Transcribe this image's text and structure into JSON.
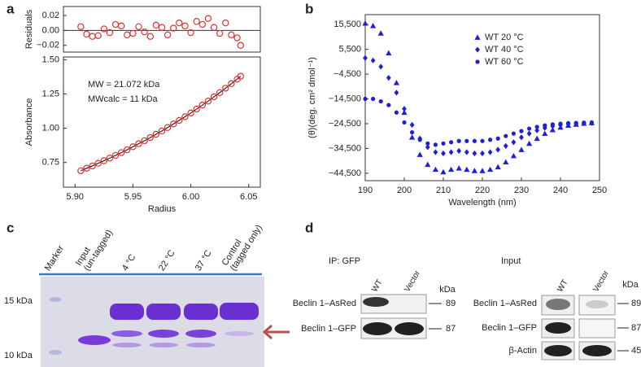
{
  "panel_labels": [
    "a",
    "b",
    "c",
    "d"
  ],
  "chart_data": [
    {
      "type": "scatter",
      "ylabel": "Residuals",
      "marker": "circle-open",
      "color": "#e03030",
      "zero_line": true,
      "x": [
        5.905,
        5.91,
        5.915,
        5.92,
        5.925,
        5.93,
        5.935,
        5.94,
        5.945,
        5.95,
        5.955,
        5.96,
        5.965,
        5.97,
        5.975,
        5.98,
        5.985,
        5.99,
        5.995,
        6.0,
        6.005,
        6.01,
        6.015,
        6.02,
        6.025,
        6.03,
        6.035,
        6.04,
        6.043
      ],
      "values": [
        0.005,
        -0.005,
        -0.008,
        -0.007,
        0.002,
        -0.003,
        0.008,
        0.006,
        -0.006,
        -0.004,
        0.005,
        -0.002,
        -0.008,
        0.007,
        0.004,
        -0.006,
        0.003,
        0.01,
        0.006,
        -0.003,
        0.012,
        0.008,
        0.016,
        0.004,
        -0.004,
        0.01,
        -0.006,
        -0.01,
        -0.02
      ],
      "xlim": [
        5.89,
        6.06
      ],
      "ylim": [
        -0.029,
        0.032
      ],
      "yticks": [
        {
          "value": 0.02,
          "label": "0.02"
        },
        {
          "value": 0,
          "label": "0.00"
        },
        {
          "value": -0.02,
          "label": "−0.02"
        }
      ]
    },
    {
      "type": "scatter",
      "ylabel": "Absorbance",
      "xlabel": "Radius",
      "marker": "circle-open",
      "color": "#e03030",
      "fit_line": true,
      "fit_color": "#000000",
      "annotations": [
        "MW = 21.072 kDa",
        "MWcalc = 11 kDa"
      ],
      "x": [
        5.905,
        5.91,
        5.915,
        5.92,
        5.925,
        5.93,
        5.935,
        5.94,
        5.945,
        5.95,
        5.955,
        5.96,
        5.965,
        5.97,
        5.975,
        5.98,
        5.985,
        5.99,
        5.995,
        6.0,
        6.005,
        6.01,
        6.015,
        6.02,
        6.025,
        6.03,
        6.035,
        6.04,
        6.043
      ],
      "values": [
        0.69,
        0.708,
        0.725,
        0.744,
        0.763,
        0.782,
        0.802,
        0.822,
        0.843,
        0.865,
        0.887,
        0.909,
        0.932,
        0.956,
        0.98,
        1.005,
        1.031,
        1.057,
        1.084,
        1.111,
        1.14,
        1.169,
        1.198,
        1.229,
        1.26,
        1.292,
        1.325,
        1.358,
        1.379
      ],
      "xlim": [
        5.89,
        6.06
      ],
      "xticks": [
        {
          "value": 5.9,
          "label": "5.90"
        },
        {
          "value": 5.95,
          "label": "5.95"
        },
        {
          "value": 6.0,
          "label": "6.00"
        },
        {
          "value": 6.05,
          "label": "6.05"
        }
      ],
      "ylim": [
        0.57,
        1.52
      ],
      "yticks": [
        {
          "value": 0.75,
          "label": "0.75"
        },
        {
          "value": 1.0,
          "label": "1.00"
        },
        {
          "value": 1.25,
          "label": "1.25"
        },
        {
          "value": 1.5,
          "label": "1.50"
        }
      ]
    },
    {
      "type": "scatter",
      "ylabel": "(θ)(deg. cm² dmol⁻¹)",
      "xlabel": "Wavelength (nm)",
      "legend": "upper right",
      "x": [
        190,
        192,
        194,
        196,
        198,
        200,
        202,
        204,
        206,
        208,
        210,
        212,
        214,
        216,
        218,
        220,
        222,
        224,
        226,
        228,
        230,
        232,
        234,
        236,
        238,
        240,
        242,
        244,
        246,
        248
      ],
      "series": [
        {
          "name": "WT 20 °C",
          "marker": "triangle",
          "color": "#1f1fd6",
          "values": [
            16000,
            15000,
            12000,
            4000,
            -8000,
            -20000,
            -30000,
            -37000,
            -41000,
            -43000,
            -44000,
            -43000,
            -42500,
            -43000,
            -43500,
            -43500,
            -43000,
            -42000,
            -40000,
            -37500,
            -35000,
            -32500,
            -30500,
            -28500,
            -27000,
            -26000,
            -25200,
            -24800,
            -24400,
            -24200
          ]
        },
        {
          "name": "WT 40 °C",
          "marker": "diamond",
          "color": "#1f1fd6",
          "values": [
            2000,
            1000,
            -1500,
            -6000,
            -12000,
            -18500,
            -25000,
            -30500,
            -34000,
            -36000,
            -36500,
            -36000,
            -35500,
            -36000,
            -36500,
            -36500,
            -36000,
            -35000,
            -33500,
            -32000,
            -30000,
            -28500,
            -27200,
            -26200,
            -25500,
            -25000,
            -24700,
            -24500,
            -24300,
            -24200
          ]
        },
        {
          "name": "WT 60 °C",
          "marker": "circle",
          "color": "#1f1fd6",
          "values": [
            -14500,
            -14500,
            -15500,
            -17000,
            -20000,
            -24000,
            -28000,
            -31000,
            -32500,
            -33000,
            -32500,
            -32000,
            -31500,
            -31500,
            -31500,
            -31500,
            -31000,
            -30500,
            -29500,
            -28500,
            -27500,
            -26500,
            -25800,
            -25200,
            -24800,
            -24500,
            -24300,
            -24200,
            -24100,
            -24000
          ]
        }
      ],
      "xlim": [
        190,
        250
      ],
      "xticks": [
        190,
        200,
        210,
        220,
        230,
        240,
        250
      ],
      "ylim": [
        -47500,
        19500
      ],
      "yticks": [
        {
          "value": 15500,
          "label": "15,500"
        },
        {
          "value": 5500,
          "label": "5,500"
        },
        {
          "value": -4500,
          "label": "−4,500"
        },
        {
          "value": -14500,
          "label": "−14,500"
        },
        {
          "value": -24500,
          "label": "−24,500"
        },
        {
          "value": -34500,
          "label": "−34,500"
        },
        {
          "value": -44500,
          "label": "−44,500"
        }
      ]
    }
  ],
  "gel": {
    "lanes": [
      [
        "Marker"
      ],
      [
        "Input",
        "(un-tagged)"
      ],
      [
        "4 °C"
      ],
      [
        "22 °C"
      ],
      [
        "37 °C"
      ],
      [
        "Control",
        "(tagged only)"
      ]
    ],
    "markers": [
      "15 kDa",
      "10 kDa"
    ]
  },
  "western": [
    {
      "title": "IP: GFP",
      "columns": [
        "WT",
        "Vector"
      ],
      "unit": "kDa",
      "rows": [
        {
          "label": "Beclin 1–AsRed",
          "kda": 89
        },
        {
          "label": "Beclin 1–GFP",
          "kda": 87
        }
      ]
    },
    {
      "title": "Input",
      "columns": [
        "WT",
        "Vector"
      ],
      "unit": "kDa",
      "rows": [
        {
          "label": "Beclin 1–AsRed",
          "kda": 89
        },
        {
          "label": "Beclin 1–GFP",
          "kda": 87
        },
        {
          "label": "β-Actin",
          "kda": 45
        }
      ]
    }
  ]
}
